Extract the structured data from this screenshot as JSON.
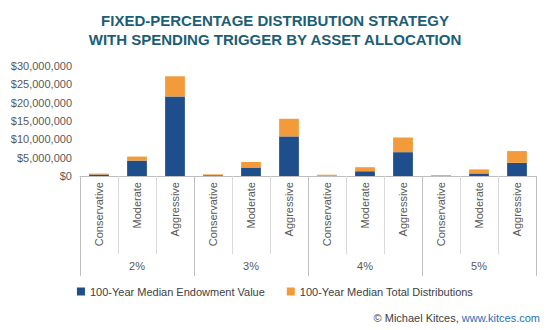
{
  "chart_data": {
    "type": "bar",
    "title": "FIXED-PERCENTAGE DISTRIBUTION STRATEGY\nWITH SPENDING TRIGGER BY ASSET ALLOCATION",
    "categories": [
      "Conservative",
      "Moderate",
      "Aggressive",
      "Conservative",
      "Moderate",
      "Aggressive",
      "Conservative",
      "Moderate",
      "Aggressive",
      "Conservative",
      "Moderate",
      "Aggressive"
    ],
    "category_groups": [
      "2%",
      "3%",
      "4%",
      "5%"
    ],
    "series": [
      {
        "name": "100-Year Median Endowment Value",
        "color": "#1f4e8c",
        "values": [
          400000,
          4200000,
          21700000,
          200000,
          2300000,
          10800000,
          100000,
          1300000,
          6500000,
          50000,
          700000,
          3600000
        ]
      },
      {
        "name": "100-Year Median Total Distributions",
        "color": "#f39b3a",
        "values": [
          250000,
          1100000,
          5500000,
          250000,
          1500000,
          4800000,
          250000,
          1100000,
          4000000,
          200000,
          1100000,
          3200000
        ]
      }
    ],
    "stacked": true,
    "ylim": [
      0,
      30000000
    ],
    "yticks": [
      {
        "value": 0,
        "label": "$0"
      },
      {
        "value": 5000000,
        "label": "$5,000,000"
      },
      {
        "value": 10000000,
        "label": "$10,000,000"
      },
      {
        "value": 15000000,
        "label": "$15,000,000"
      },
      {
        "value": 20000000,
        "label": "$20,000,000"
      },
      {
        "value": 25000000,
        "label": "$25,000,000"
      },
      {
        "value": 30000000,
        "label": "$30,000,000"
      }
    ],
    "grid": false,
    "legend": "bottom",
    "credit": "© Michael Kitces, ",
    "credit_link": "www.kitces.com"
  }
}
